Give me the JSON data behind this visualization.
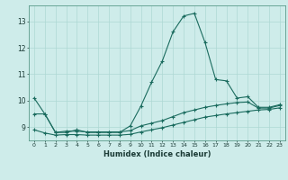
{
  "xlabel": "Humidex (Indice chaleur)",
  "ylabel": "",
  "background_color": "#ceecea",
  "grid_color": "#aed8d4",
  "line_color": "#1a6b5e",
  "xlim": [
    -0.5,
    23.5
  ],
  "ylim": [
    8.5,
    13.6
  ],
  "yticks": [
    9,
    10,
    11,
    12,
    13
  ],
  "xticks": [
    0,
    1,
    2,
    3,
    4,
    5,
    6,
    7,
    8,
    9,
    10,
    11,
    12,
    13,
    14,
    15,
    16,
    17,
    18,
    19,
    20,
    21,
    22,
    23
  ],
  "line1_x": [
    0,
    1,
    2,
    3,
    4,
    5,
    6,
    7,
    8,
    9,
    10,
    11,
    12,
    13,
    14,
    15,
    16,
    17,
    18,
    19,
    20,
    21,
    22,
    23
  ],
  "line1_y": [
    10.1,
    9.5,
    8.8,
    8.8,
    8.9,
    8.8,
    8.8,
    8.8,
    8.8,
    9.05,
    9.8,
    10.7,
    11.5,
    12.6,
    13.2,
    13.3,
    12.2,
    10.8,
    10.75,
    10.1,
    10.15,
    9.75,
    9.75,
    9.85
  ],
  "line2_x": [
    0,
    1,
    2,
    3,
    4,
    5,
    6,
    7,
    8,
    9,
    10,
    11,
    12,
    13,
    14,
    15,
    16,
    17,
    18,
    19,
    20,
    21,
    22,
    23
  ],
  "line2_y": [
    9.5,
    9.5,
    8.8,
    8.85,
    8.85,
    8.82,
    8.82,
    8.82,
    8.82,
    8.87,
    9.05,
    9.15,
    9.25,
    9.4,
    9.55,
    9.65,
    9.75,
    9.82,
    9.88,
    9.93,
    9.95,
    9.72,
    9.72,
    9.82
  ],
  "line3_x": [
    0,
    1,
    2,
    3,
    4,
    5,
    6,
    7,
    8,
    9,
    10,
    11,
    12,
    13,
    14,
    15,
    16,
    17,
    18,
    19,
    20,
    21,
    22,
    23
  ],
  "line3_y": [
    8.9,
    8.78,
    8.7,
    8.72,
    8.72,
    8.7,
    8.7,
    8.7,
    8.7,
    8.73,
    8.82,
    8.9,
    8.98,
    9.08,
    9.18,
    9.28,
    9.38,
    9.44,
    9.5,
    9.55,
    9.6,
    9.65,
    9.67,
    9.73
  ]
}
